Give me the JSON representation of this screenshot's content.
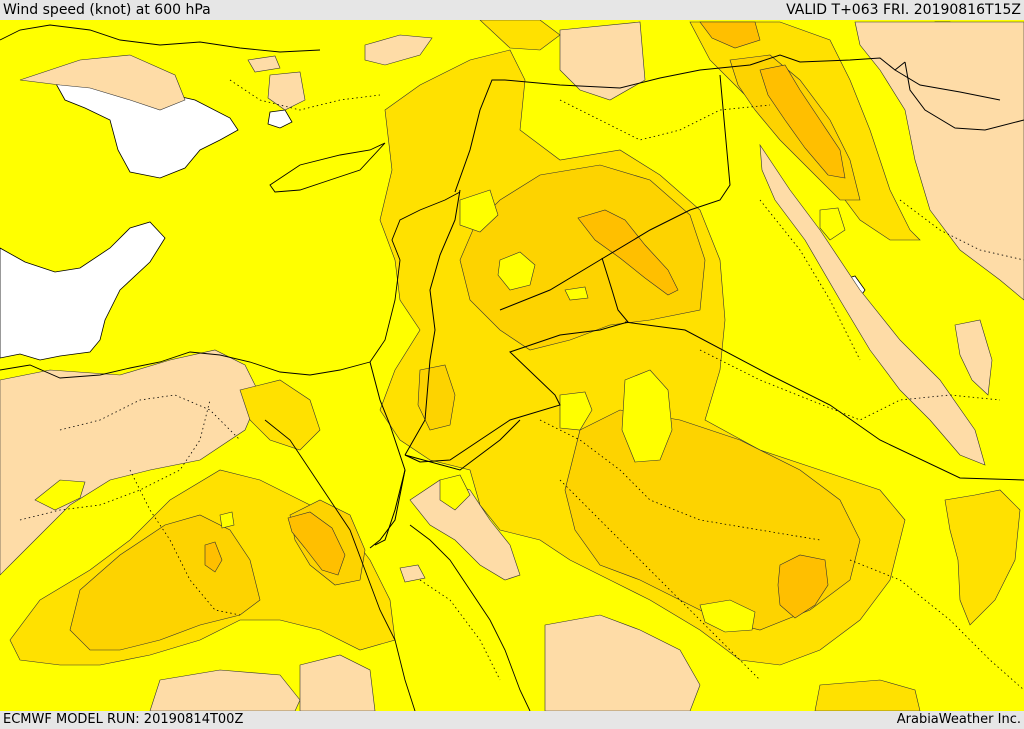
{
  "header": {
    "title": "Wind speed (knot) at 600 hPa",
    "valid": "VALID T+063 FRI. 20190816T15Z"
  },
  "footer": {
    "model_run": "ECMWF MODEL RUN: 20190814T00Z",
    "credit": "ArabiaWeather Inc."
  },
  "colors": {
    "base": "#ffff00",
    "light": "#fedca7",
    "band1": "#ffe100",
    "band2": "#fdd300",
    "band3": "#ffbf00",
    "water": "#ffffff",
    "bar": "#e6e6e6"
  }
}
